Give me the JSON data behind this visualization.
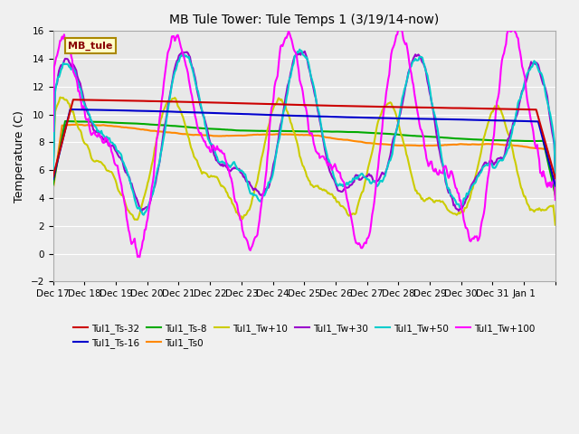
{
  "title": "MB Tule Tower: Tule Temps 1 (3/19/14-now)",
  "ylabel": "Temperature (C)",
  "xlim": [
    0,
    16
  ],
  "ylim": [
    -2,
    16
  ],
  "yticks": [
    -2,
    0,
    2,
    4,
    6,
    8,
    10,
    12,
    14,
    16
  ],
  "xtick_positions": [
    0,
    1,
    2,
    3,
    4,
    5,
    6,
    7,
    8,
    9,
    10,
    11,
    12,
    13,
    14,
    15,
    16
  ],
  "xtick_labels": [
    "Dec 17",
    "Dec 18",
    "Dec 19",
    "Dec 20",
    "Dec 21",
    "Dec 22",
    "Dec 23",
    "Dec 24",
    "Dec 25",
    "Dec 26",
    "Dec 27",
    "Dec 28",
    "Dec 29",
    "Dec 30",
    "Dec 31",
    "Jan 1",
    ""
  ],
  "legend_box_label": "MB_tule",
  "series_names": [
    "Tul1_Ts-32",
    "Tul1_Ts-16",
    "Tul1_Ts-8",
    "Tul1_Ts0",
    "Tul1_Tw+10",
    "Tul1_Tw+30",
    "Tul1_Tw+50",
    "Tul1_Tw+100"
  ],
  "series_colors": [
    "#cc0000",
    "#0000cc",
    "#00aa00",
    "#ff8800",
    "#cccc00",
    "#9900cc",
    "#00cccc",
    "#ff00ff"
  ],
  "series_lw": [
    1.5,
    1.5,
    1.5,
    1.5,
    1.5,
    1.5,
    1.5,
    1.5
  ]
}
